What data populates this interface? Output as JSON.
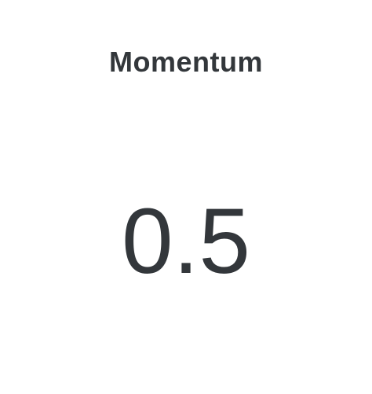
{
  "metric": {
    "title": "Momentum",
    "value": "0.5"
  },
  "colors": {
    "background": "#ffffff",
    "text": "#33373b"
  }
}
